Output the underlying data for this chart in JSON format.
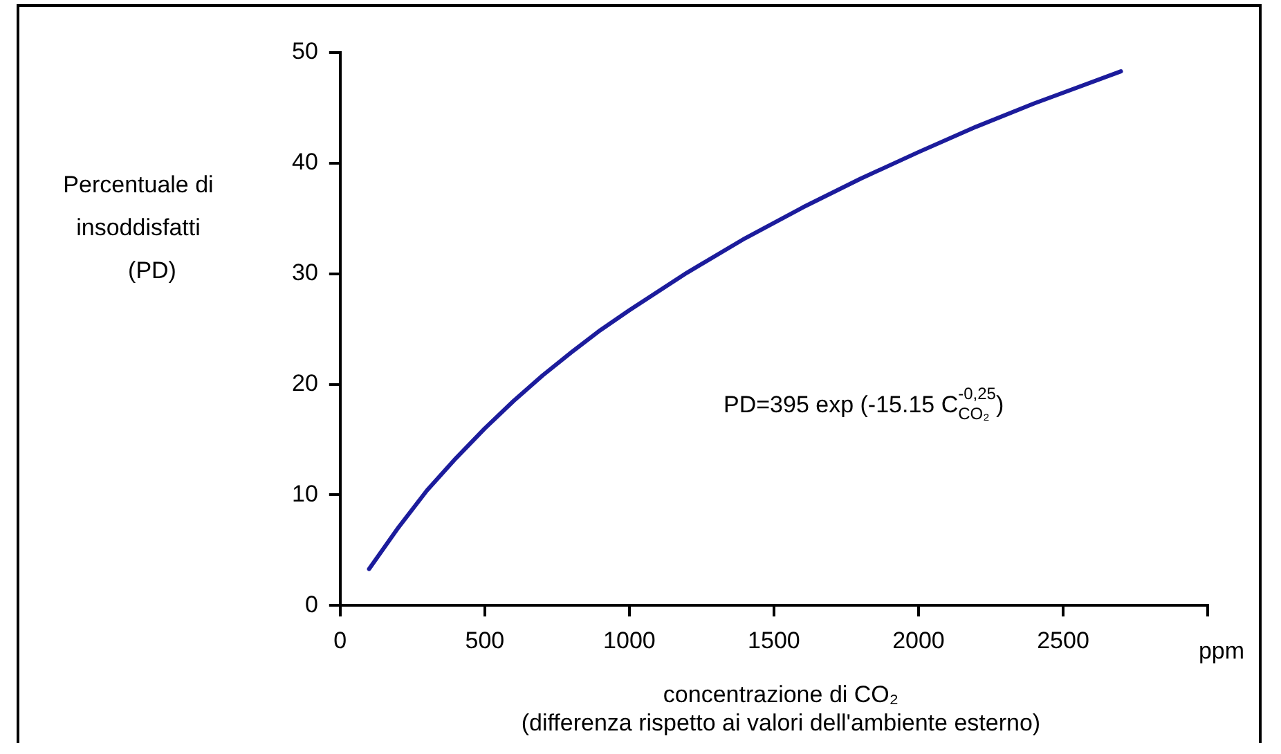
{
  "chart_data": {
    "type": "line",
    "ylabel": "Percentuale di\ninsoddisfatti\n(PD)",
    "xlabel": "concentrazione di CO₂",
    "annotations": [
      "PD=395 exp (-15.15 C$^{-0,25}$$_{CO₂}$)",
      "ppm",
      "(differenza rispetto ai valori dell'ambiente esterno)"
    ],
    "x": [
      100,
      200,
      300,
      400,
      500,
      600,
      700,
      800,
      900,
      1000,
      1200,
      1400,
      1600,
      1800,
      2000,
      2200,
      2400,
      2700
    ],
    "series": [
      {
        "color": "#1c1c9c",
        "values": [
          3.3,
          7.0,
          10.4,
          13.3,
          16.0,
          18.5,
          20.8,
          22.9,
          24.9,
          26.7,
          30.1,
          33.2,
          36.0,
          38.6,
          41.0,
          43.3,
          45.4,
          48.3
        ]
      }
    ],
    "xlim": [
      0,
      3000
    ],
    "xticks": [
      0,
      500,
      1000,
      1500,
      2000,
      2500,
      {
        "value": 3000,
        "label": null
      }
    ],
    "ylim": [
      0,
      50
    ],
    "yticks": [
      0,
      10,
      20,
      30,
      40,
      50
    ],
    "grid": false,
    "legend": false,
    "marker": "none",
    "line_style": "solid"
  }
}
